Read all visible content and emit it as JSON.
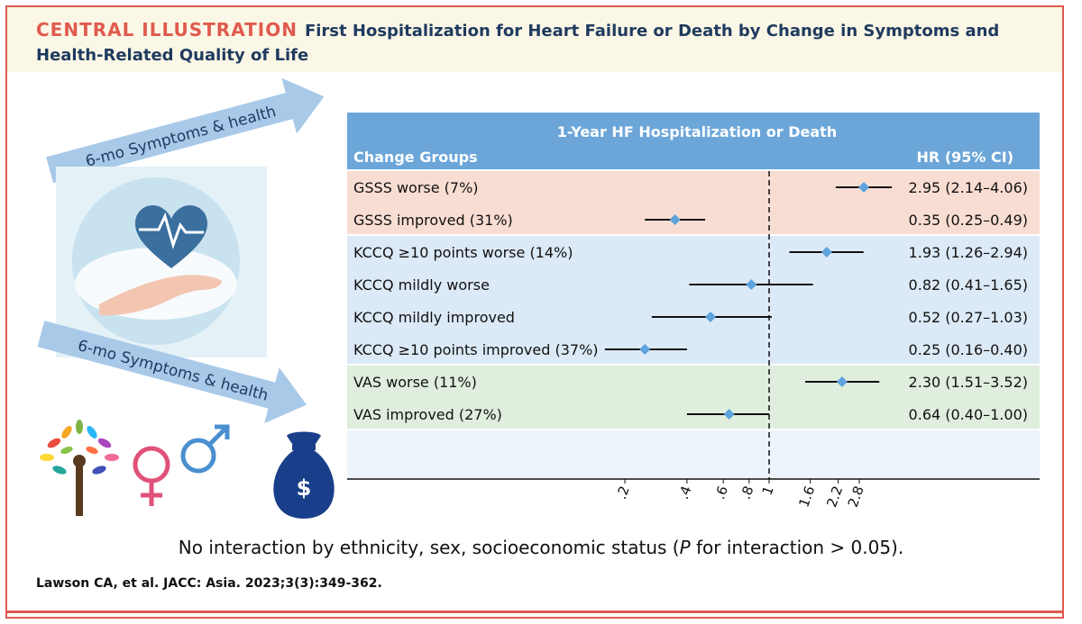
{
  "header": {
    "label": "CENTRAL ILLUSTRATION",
    "title": "First Hospitalization for Heart Failure or Death by Change in Symptoms and Health-Related Quality of Life"
  },
  "illustration": {
    "arrow_top": "6-mo Symptoms & health",
    "arrow_bottom": "6-mo Symptoms & health",
    "money_symbol": "$"
  },
  "colors": {
    "header_bg": "#fbf7e6",
    "accent_red": "#e05a4e",
    "table_header": "#6ca6d9",
    "gsss_band": "#f8ddd3",
    "kccq_band": "#dce9f6",
    "vas_band": "#dfeedd",
    "empty_band": "#eef4fb",
    "marker": "#5ea3dc"
  },
  "chart_data": {
    "type": "forest",
    "title": "1-Year HF Hospitalization or Death",
    "left_header": "Change Groups",
    "right_header": "HR (95% CI)",
    "x_scale": "log",
    "reference_line": 1,
    "xlim": [
      0.1,
      4.2
    ],
    "x_ticks": [
      ".2",
      ".4",
      ".6",
      ".8",
      "1",
      "1.6",
      "2.2",
      "2.8"
    ],
    "x_tick_values": [
      0.2,
      0.4,
      0.6,
      0.8,
      1.0,
      1.6,
      2.2,
      2.8
    ],
    "rows": [
      {
        "label": "GSSS worse (7%)",
        "group": "gsss",
        "hr": 2.95,
        "lo": 2.14,
        "hi": 4.06,
        "text": "2.95 (2.14–4.06)"
      },
      {
        "label": "GSSS improved (31%)",
        "group": "gsss",
        "hr": 0.35,
        "lo": 0.25,
        "hi": 0.49,
        "text": "0.35 (0.25–0.49)"
      },
      {
        "label": "KCCQ ≥10 points worse (14%)",
        "group": "kccq",
        "hr": 1.93,
        "lo": 1.26,
        "hi": 2.94,
        "text": "1.93 (1.26–2.94)"
      },
      {
        "label": "KCCQ mildly worse",
        "group": "kccq",
        "hr": 0.82,
        "lo": 0.41,
        "hi": 1.65,
        "text": "0.82 (0.41–1.65)"
      },
      {
        "label": "KCCQ mildly improved",
        "group": "kccq",
        "hr": 0.52,
        "lo": 0.27,
        "hi": 1.03,
        "text": "0.52 (0.27–1.03)"
      },
      {
        "label": "KCCQ ≥10 points improved (37%)",
        "group": "kccq",
        "hr": 0.25,
        "lo": 0.16,
        "hi": 0.4,
        "text": "0.25 (0.16–0.40)"
      },
      {
        "label": "VAS worse (11%)",
        "group": "vas",
        "hr": 2.3,
        "lo": 1.51,
        "hi": 3.52,
        "text": "2.30 (1.51–3.52)"
      },
      {
        "label": "VAS improved (27%)",
        "group": "vas",
        "hr": 0.64,
        "lo": 0.4,
        "hi": 1.0,
        "text": "0.64 (0.40–1.00)"
      }
    ]
  },
  "footnote": {
    "text_before": "No interaction by ethnicity, sex, socioeconomic status (",
    "p_italic": "P",
    "text_after": " for interaction > 0.05)."
  },
  "citation": "Lawson CA, et al. JACC: Asia. 2023;3(3):349-362."
}
